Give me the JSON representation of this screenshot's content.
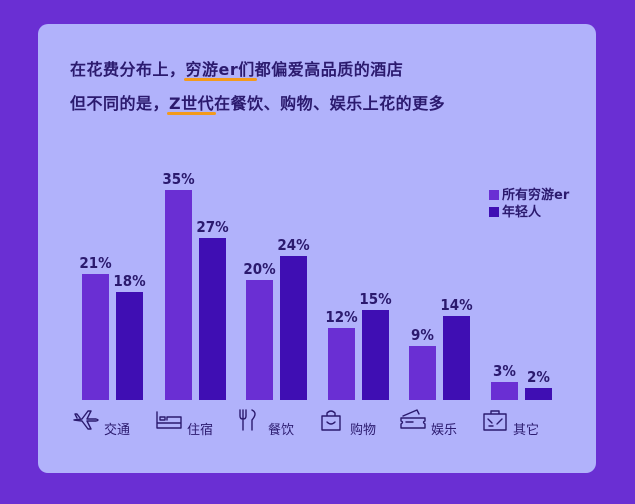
{
  "headline": {
    "line1_before": "在花费分布上，",
    "line1_mark": "穷游er们",
    "line1_after": "都偏爱高品质的酒店",
    "line2_before": "但不同的是，",
    "line2_mark": "Z世代",
    "line2_after": "在餐饮、购物、娱乐上花的更多"
  },
  "colors": {
    "background": "#6a2fd3",
    "card": "#b1b2fb",
    "series_all": "#6a2fd3",
    "series_young": "#3f0eb3",
    "text": "#2b1a6e",
    "highlight": "#f39a1c"
  },
  "chart_data": {
    "type": "bar",
    "categories": [
      "交通",
      "住宿",
      "餐饮",
      "购物",
      "娱乐",
      "其它"
    ],
    "category_icons": [
      "airplane-icon",
      "bed-icon",
      "utensils-icon",
      "shopping-bag-icon",
      "ticket-icon",
      "suitcase-icon"
    ],
    "series": [
      {
        "name": "所有穷游er",
        "values": [
          21,
          35,
          20,
          12,
          9,
          3
        ]
      },
      {
        "name": "年轻人",
        "values": [
          18,
          27,
          24,
          15,
          14,
          2
        ]
      }
    ],
    "value_suffix": "%",
    "ylim": [
      0,
      35
    ],
    "grid": false,
    "legend_position": "top-right"
  }
}
